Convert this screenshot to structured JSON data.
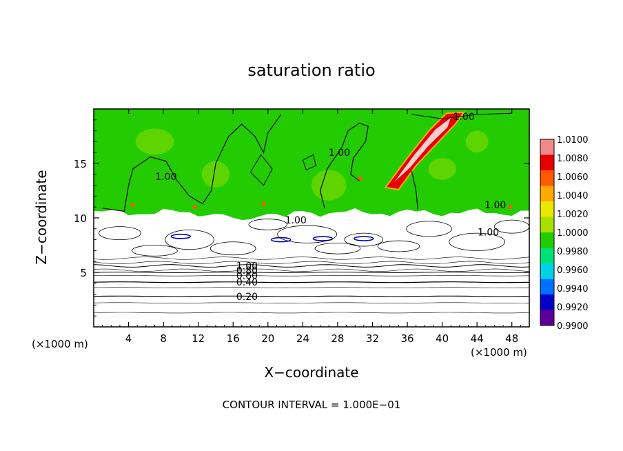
{
  "chart_data": {
    "type": "heatmap",
    "title": "saturation ratio",
    "xlabel": "X−coordinate",
    "ylabel": "Z−coordinate",
    "x_unit_label": "(×1000 m)",
    "footer": "CONTOUR INTERVAL = 1.000E−01",
    "xlim": [
      0,
      50
    ],
    "ylim": [
      0,
      20
    ],
    "x_ticks": [
      4,
      8,
      12,
      16,
      20,
      24,
      28,
      32,
      36,
      40,
      44,
      48
    ],
    "y_ticks": [
      5,
      10,
      15
    ],
    "contour_interval": 0.1,
    "contour_labels": [
      {
        "text": "1.00",
        "x": 8.3,
        "y": 13.8
      },
      {
        "text": "1.00",
        "x": 28.2,
        "y": 16.0
      },
      {
        "text": "1.00",
        "x": 42.5,
        "y": 19.3
      },
      {
        "text": "1.00",
        "x": 23.2,
        "y": 9.8
      },
      {
        "text": "1.00",
        "x": 46.1,
        "y": 11.2
      },
      {
        "text": "1.00",
        "x": 45.3,
        "y": 8.7
      },
      {
        "text": "1.00",
        "x": 17.6,
        "y": 5.6
      },
      {
        "text": "0.80",
        "x": 17.6,
        "y": 5.2
      },
      {
        "text": "0.60",
        "x": 17.6,
        "y": 4.7
      },
      {
        "text": "0.40",
        "x": 17.6,
        "y": 4.1
      },
      {
        "text": "0.20",
        "x": 17.6,
        "y": 2.8
      }
    ],
    "colorbar": {
      "ticks": [
        "1.0100",
        "1.0080",
        "1.0060",
        "1.0040",
        "1.0020",
        "1.0000",
        "0.9980",
        "0.9960",
        "0.9940",
        "0.9920",
        "0.9900"
      ],
      "colors": [
        "#f08a8a",
        "#e60000",
        "#ff5a00",
        "#ffa800",
        "#e8e800",
        "#a8e000",
        "#22cc00",
        "#00e07a",
        "#00d2e6",
        "#0070ff",
        "#0000c8",
        "#5a0099"
      ]
    },
    "saturated_region_top": 10.5,
    "field_summary": [
      {
        "region": "upper layer (z above ~10.5)",
        "value": 1.0
      },
      {
        "region": "lower layer (z below ~10.5)",
        "value": "below 0.99 (uncolored)"
      }
    ]
  }
}
